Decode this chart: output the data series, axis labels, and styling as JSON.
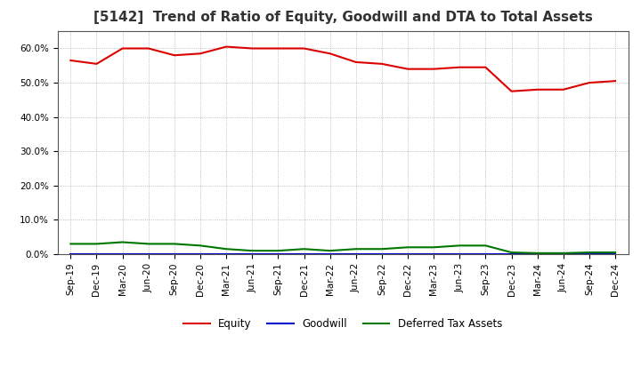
{
  "title": "[5142]  Trend of Ratio of Equity, Goodwill and DTA to Total Assets",
  "x_labels": [
    "Sep-19",
    "Dec-19",
    "Mar-20",
    "Jun-20",
    "Sep-20",
    "Dec-20",
    "Mar-21",
    "Jun-21",
    "Sep-21",
    "Dec-21",
    "Mar-22",
    "Jun-22",
    "Sep-22",
    "Dec-22",
    "Mar-23",
    "Jun-23",
    "Sep-23",
    "Dec-23",
    "Mar-24",
    "Jun-24",
    "Sep-24",
    "Dec-24"
  ],
  "equity": [
    56.5,
    55.5,
    60.0,
    60.0,
    58.0,
    58.5,
    60.5,
    60.0,
    60.0,
    60.0,
    58.5,
    56.0,
    55.5,
    54.0,
    54.0,
    54.5,
    54.5,
    47.5,
    48.0,
    48.0,
    50.0,
    50.5
  ],
  "goodwill": [
    0.0,
    0.0,
    0.0,
    0.0,
    0.0,
    0.0,
    0.0,
    0.0,
    0.0,
    0.0,
    0.0,
    0.0,
    0.0,
    0.0,
    0.0,
    0.0,
    0.0,
    0.0,
    0.0,
    0.0,
    0.0,
    0.0
  ],
  "dta": [
    3.0,
    3.0,
    3.5,
    3.0,
    3.0,
    2.5,
    1.5,
    1.0,
    1.0,
    1.5,
    1.0,
    1.5,
    1.5,
    2.0,
    2.0,
    2.5,
    2.5,
    0.5,
    0.3,
    0.3,
    0.5,
    0.5
  ],
  "equity_color": "#dd0000",
  "goodwill_color": "#0000cc",
  "dta_color": "#007700",
  "ylim": [
    0,
    65
  ],
  "yticks": [
    0,
    10,
    20,
    30,
    40,
    50,
    60
  ],
  "background_color": "#ffffff",
  "grid_color": "#999999",
  "title_fontsize": 11,
  "tick_fontsize": 7.5,
  "legend_labels": [
    "Equity",
    "Goodwill",
    "Deferred Tax Assets"
  ]
}
